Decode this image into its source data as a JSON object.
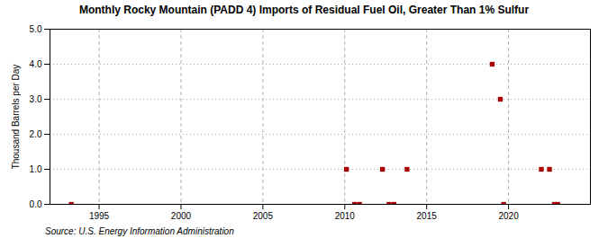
{
  "chart_data": {
    "type": "scatter",
    "title": "Monthly Rocky Mountain (PADD 4) Imports of Residual Fuel Oil, Greater Than 1% Sulfur",
    "ylabel": "Thousand Barrels per Day",
    "source": "Source: U.S. Energy Information Administration",
    "x": [
      1993.3,
      2010.1,
      2010.6,
      2010.9,
      2012.3,
      2012.7,
      2013.0,
      2013.8,
      2019.0,
      2019.5,
      2019.7,
      2022.0,
      2022.5,
      2022.8,
      2023.0
    ],
    "values": [
      0.0,
      1.0,
      0.0,
      0.0,
      1.0,
      0.0,
      0.0,
      1.0,
      4.0,
      3.0,
      0.0,
      1.0,
      1.0,
      0.0,
      0.0
    ],
    "color": "#aa0000",
    "marker": "square",
    "xlim": [
      1992,
      2025
    ],
    "xticks": [
      1995,
      2000,
      2005,
      2010,
      2015,
      2020
    ],
    "ylim": [
      0,
      5.0
    ],
    "yticks": [
      {
        "value": 0.0,
        "label": "0.0"
      },
      {
        "value": 1.0,
        "label": "1.0"
      },
      {
        "value": 2.0,
        "label": "2.0"
      },
      {
        "value": 3.0,
        "label": "3.0"
      },
      {
        "value": 4.0,
        "label": "4.0"
      },
      {
        "value": 5.0,
        "label": "5.0"
      }
    ],
    "grid": true
  }
}
